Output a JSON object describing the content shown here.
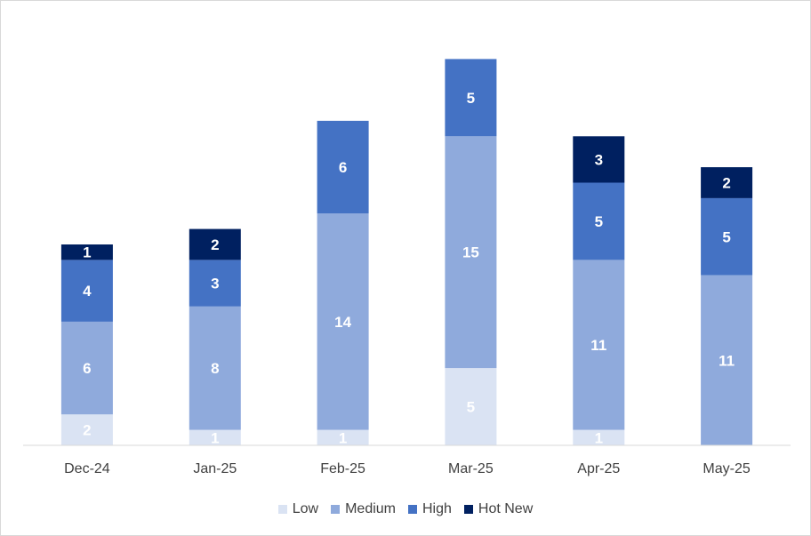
{
  "chart_data": {
    "type": "bar",
    "stacked": true,
    "categories": [
      "Dec-24",
      "Jan-25",
      "Feb-25",
      "Mar-25",
      "Apr-25",
      "May-25"
    ],
    "series": [
      {
        "name": "Low",
        "color": "#dae3f3",
        "label_color": "#ffffff",
        "values": [
          2,
          1,
          1,
          5,
          1,
          0
        ]
      },
      {
        "name": "Medium",
        "color": "#8faadc",
        "label_color": "#ffffff",
        "values": [
          6,
          8,
          14,
          15,
          11,
          11
        ]
      },
      {
        "name": "High",
        "color": "#4472c4",
        "label_color": "#ffffff",
        "values": [
          4,
          3,
          6,
          5,
          5,
          5
        ]
      },
      {
        "name": "Hot New",
        "color": "#002060",
        "label_color": "#ffffff",
        "values": [
          1,
          2,
          0,
          0,
          3,
          2
        ]
      }
    ],
    "ylim": [
      0,
      26
    ],
    "title": "",
    "xlabel": "",
    "ylabel": "",
    "grid": false,
    "legend_position": "bottom"
  }
}
